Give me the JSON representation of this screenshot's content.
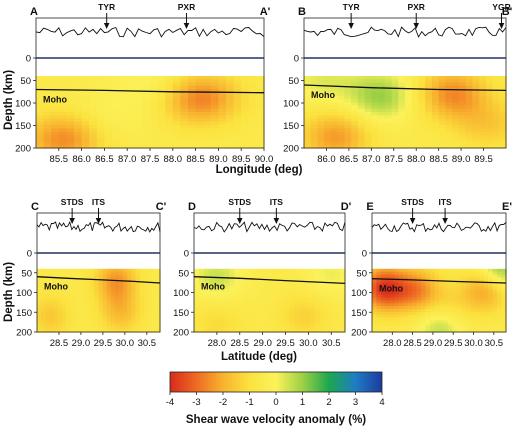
{
  "depth_label": "Depth (km)",
  "colorbar": {
    "title": "Shear wave velocity anomaly (%)",
    "ticks": [
      "-4",
      "-3",
      "-2",
      "-1",
      "0",
      "1",
      "2",
      "3",
      "4"
    ],
    "range": [
      -4,
      4
    ],
    "colors": [
      "#d92a1c",
      "#ee6b22",
      "#f8b32f",
      "#fbe23f",
      "#fbf25a",
      "#9dd046",
      "#1ba84e",
      "#1e7cc4",
      "#1d3b9e"
    ]
  },
  "row_xlabels": [
    "Longitude (deg)",
    "Latitude (deg)"
  ],
  "chart_data": [
    {
      "type": "heatmap",
      "panel": "A-A'",
      "left_label": "A",
      "right_label": "A'",
      "xlim": [
        85.0,
        90.0
      ],
      "ylim": [
        200,
        0
      ],
      "xticks": [
        "85.5",
        "86.0",
        "86.5",
        "87.0",
        "87.5",
        "88.0",
        "88.5",
        "89.0",
        "89.5",
        "90.0"
      ],
      "yticks": [
        "0",
        "50",
        "100",
        "150",
        "200"
      ],
      "stations": [
        {
          "name": "TYR",
          "x": 86.55
        },
        {
          "name": "PXR",
          "x": 88.3
        }
      ],
      "moho_label": "Moho",
      "moho": {
        "x": [
          85.0,
          86.5,
          88.0,
          89.0,
          90.0
        ],
        "depth": [
          70,
          72,
          75,
          76,
          77
        ]
      },
      "anomalies": [
        {
          "x": 88.6,
          "depth": 90,
          "value": -2.2
        },
        {
          "x": 85.6,
          "depth": 180,
          "value": -2.0
        },
        {
          "x": 86.6,
          "depth": 130,
          "value": 0.4
        },
        {
          "x": 87.6,
          "depth": 55,
          "value": 0.6
        }
      ]
    },
    {
      "type": "heatmap",
      "panel": "B-B'",
      "left_label": "B",
      "right_label": "B'",
      "xlim": [
        85.5,
        90.0
      ],
      "ylim": [
        200,
        0
      ],
      "xticks": [
        "86.0",
        "86.5",
        "87.0",
        "87.5",
        "88.0",
        "88.5",
        "89.0",
        "89.5"
      ],
      "yticks": [
        "0",
        "50",
        "100",
        "150",
        "200"
      ],
      "stations": [
        {
          "name": "TYR",
          "x": 86.55
        },
        {
          "name": "PXR",
          "x": 88.0
        },
        {
          "name": "YGR",
          "x": 89.9
        }
      ],
      "moho_label": "Moho",
      "moho": {
        "x": [
          85.5,
          87.0,
          88.5,
          90.0
        ],
        "depth": [
          60,
          66,
          70,
          72
        ]
      },
      "anomalies": [
        {
          "x": 87.2,
          "depth": 85,
          "value": 1.6
        },
        {
          "x": 85.9,
          "depth": 50,
          "value": 0.8
        },
        {
          "x": 88.8,
          "depth": 80,
          "value": -2.0
        },
        {
          "x": 86.2,
          "depth": 175,
          "value": -1.8
        },
        {
          "x": 89.6,
          "depth": 145,
          "value": -1.0
        }
      ]
    },
    {
      "type": "heatmap",
      "panel": "C-C'",
      "left_label": "C",
      "right_label": "C'",
      "xlim": [
        28.0,
        30.8
      ],
      "ylim": [
        200,
        0
      ],
      "xticks": [
        "28.5",
        "29.0",
        "29.5",
        "30.0",
        "30.5"
      ],
      "yticks": [
        "0",
        "50",
        "100",
        "150",
        "200"
      ],
      "stations": [
        {
          "name": "STDS",
          "x": 28.8
        },
        {
          "name": "ITS",
          "x": 29.4
        }
      ],
      "moho_label": "Moho",
      "moho": {
        "x": [
          28.0,
          28.7,
          29.5,
          30.2,
          30.8
        ],
        "depth": [
          60,
          64,
          68,
          72,
          76
        ]
      },
      "anomalies": [
        {
          "x": 29.8,
          "depth": 70,
          "value": -1.8
        },
        {
          "x": 29.9,
          "depth": 150,
          "value": -1.2
        },
        {
          "x": 28.3,
          "depth": 160,
          "value": -1.0
        }
      ]
    },
    {
      "type": "heatmap",
      "panel": "D-D'",
      "left_label": "D",
      "right_label": "D'",
      "xlim": [
        27.5,
        30.8
      ],
      "ylim": [
        200,
        0
      ],
      "xticks": [
        "28.0",
        "28.5",
        "29.0",
        "29.5",
        "30.0",
        "30.5"
      ],
      "yticks": [
        "0",
        "50",
        "100",
        "150",
        "200"
      ],
      "stations": [
        {
          "name": "STDS",
          "x": 28.5
        },
        {
          "name": "ITS",
          "x": 29.3
        }
      ],
      "moho_label": "Moho",
      "moho": {
        "x": [
          27.5,
          28.5,
          29.5,
          30.8
        ],
        "depth": [
          60,
          64,
          70,
          77
        ]
      },
      "anomalies": [
        {
          "x": 28.0,
          "depth": 60,
          "value": 1.1
        },
        {
          "x": 30.5,
          "depth": 55,
          "value": 0.7
        },
        {
          "x": 29.9,
          "depth": 160,
          "value": -0.8
        },
        {
          "x": 28.0,
          "depth": 180,
          "value": -0.6
        }
      ]
    },
    {
      "type": "heatmap",
      "panel": "E-E'",
      "left_label": "E",
      "right_label": "E'",
      "xlim": [
        27.5,
        30.8
      ],
      "ylim": [
        200,
        0
      ],
      "xticks": [
        "28.0",
        "28.5",
        "29.0",
        "29.5",
        "30.0",
        "30.5"
      ],
      "yticks": [
        "0",
        "50",
        "100",
        "150",
        "200"
      ],
      "stations": [
        {
          "name": "STDS",
          "x": 28.5
        },
        {
          "name": "ITS",
          "x": 29.3
        }
      ],
      "moho_label": "Moho",
      "moho": {
        "x": [
          27.5,
          28.5,
          29.5,
          30.8
        ],
        "depth": [
          65,
          68,
          72,
          76
        ]
      },
      "anomalies": [
        {
          "x": 27.8,
          "depth": 90,
          "value": -3.2
        },
        {
          "x": 28.6,
          "depth": 95,
          "value": -2.0
        },
        {
          "x": 30.3,
          "depth": 90,
          "value": -2.0
        },
        {
          "x": 30.6,
          "depth": 45,
          "value": 2.0
        },
        {
          "x": 29.2,
          "depth": 185,
          "value": 1.4
        },
        {
          "x": 29.4,
          "depth": 140,
          "value": -0.8
        }
      ]
    }
  ]
}
